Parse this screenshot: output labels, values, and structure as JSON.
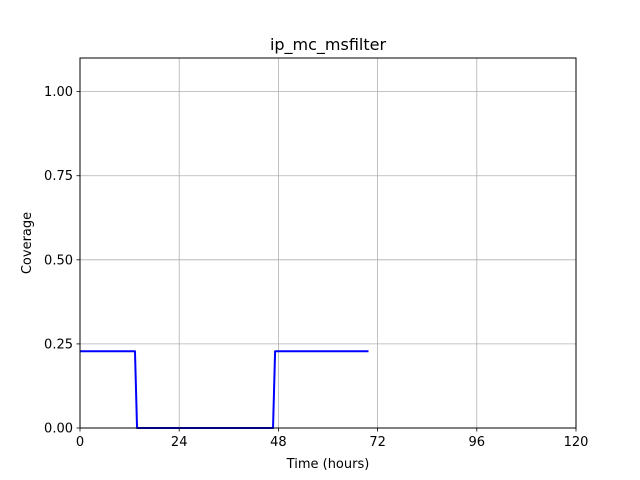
{
  "chart_data": {
    "type": "line",
    "title": "ip_mc_msfilter",
    "xlabel": "Time (hours)",
    "ylabel": "Coverage",
    "xlim": [
      0,
      120
    ],
    "ylim": [
      0,
      1.1
    ],
    "xticks": [
      0,
      24,
      48,
      72,
      96,
      120
    ],
    "yticks": [
      0.0,
      0.25,
      0.5,
      0.75,
      1.0
    ],
    "xtick_labels": [
      "0",
      "24",
      "48",
      "72",
      "96",
      "120"
    ],
    "ytick_labels": [
      "0.00",
      "0.25",
      "0.50",
      "0.75",
      "1.00"
    ],
    "grid": true,
    "series": [
      {
        "color": "#0000ff",
        "x": [
          0,
          13.3,
          13.8,
          46.7,
          47.2,
          69.8
        ],
        "y": [
          0.228,
          0.228,
          0.0,
          0.0,
          0.228,
          0.228
        ]
      }
    ]
  }
}
